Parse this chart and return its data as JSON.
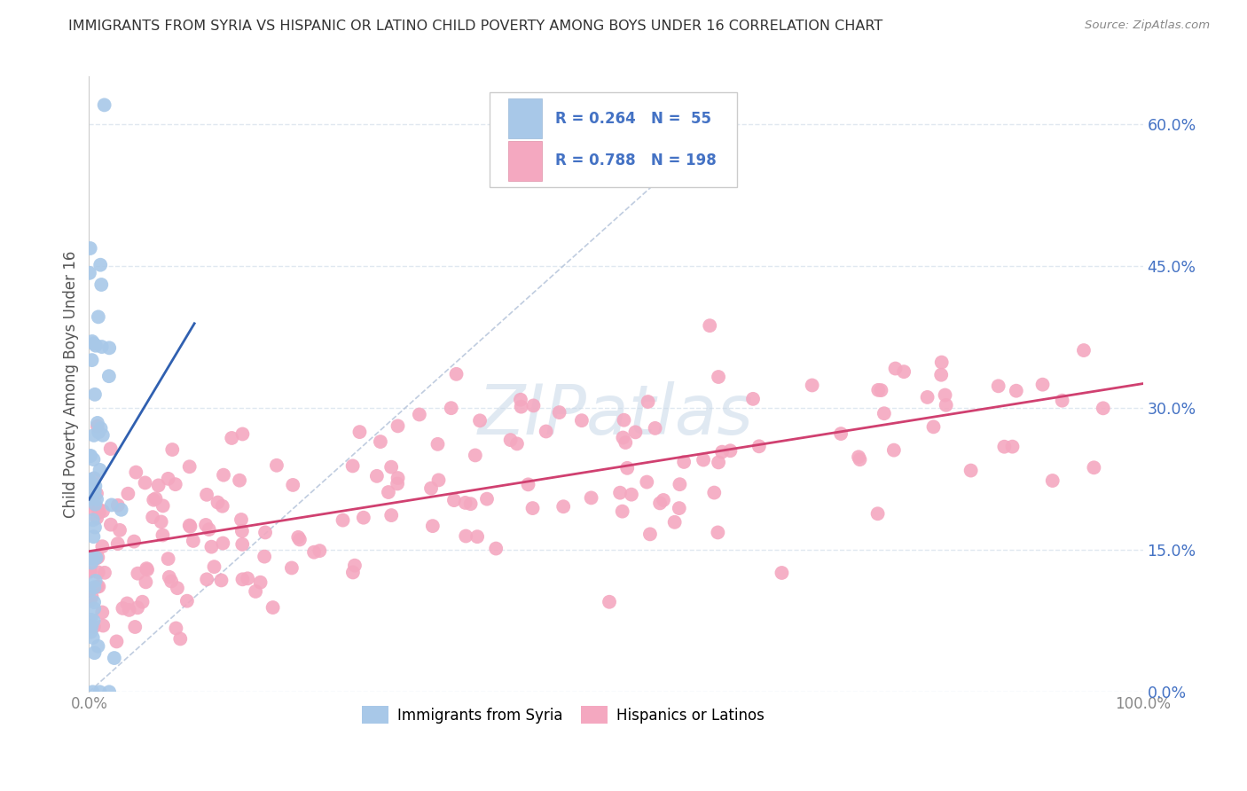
{
  "title": "IMMIGRANTS FROM SYRIA VS HISPANIC OR LATINO CHILD POVERTY AMONG BOYS UNDER 16 CORRELATION CHART",
  "source": "Source: ZipAtlas.com",
  "ylabel": "Child Poverty Among Boys Under 16",
  "xlabel": "",
  "xlim": [
    0,
    1.0
  ],
  "ylim": [
    0,
    0.65
  ],
  "ytick_vals": [
    0.0,
    0.15,
    0.3,
    0.45,
    0.6
  ],
  "ytick_labels": [
    "0.0%",
    "15.0%",
    "30.0%",
    "45.0%",
    "60.0%"
  ],
  "xtick_vals": [
    0.0,
    1.0
  ],
  "xtick_labels": [
    "0.0%",
    "100.0%"
  ],
  "legend1_label": "Immigrants from Syria",
  "legend2_label": "Hispanics or Latinos",
  "r1": 0.264,
  "n1": 55,
  "r2": 0.788,
  "n2": 198,
  "blue_color": "#a8c8e8",
  "pink_color": "#f4a8c0",
  "blue_line_color": "#3060b0",
  "pink_line_color": "#d04070",
  "ref_line_color": "#b0c0d8",
  "background_color": "#ffffff",
  "grid_color": "#e0e8f0",
  "title_color": "#333333",
  "tick_color": "#4472c4",
  "source_color": "#888888"
}
